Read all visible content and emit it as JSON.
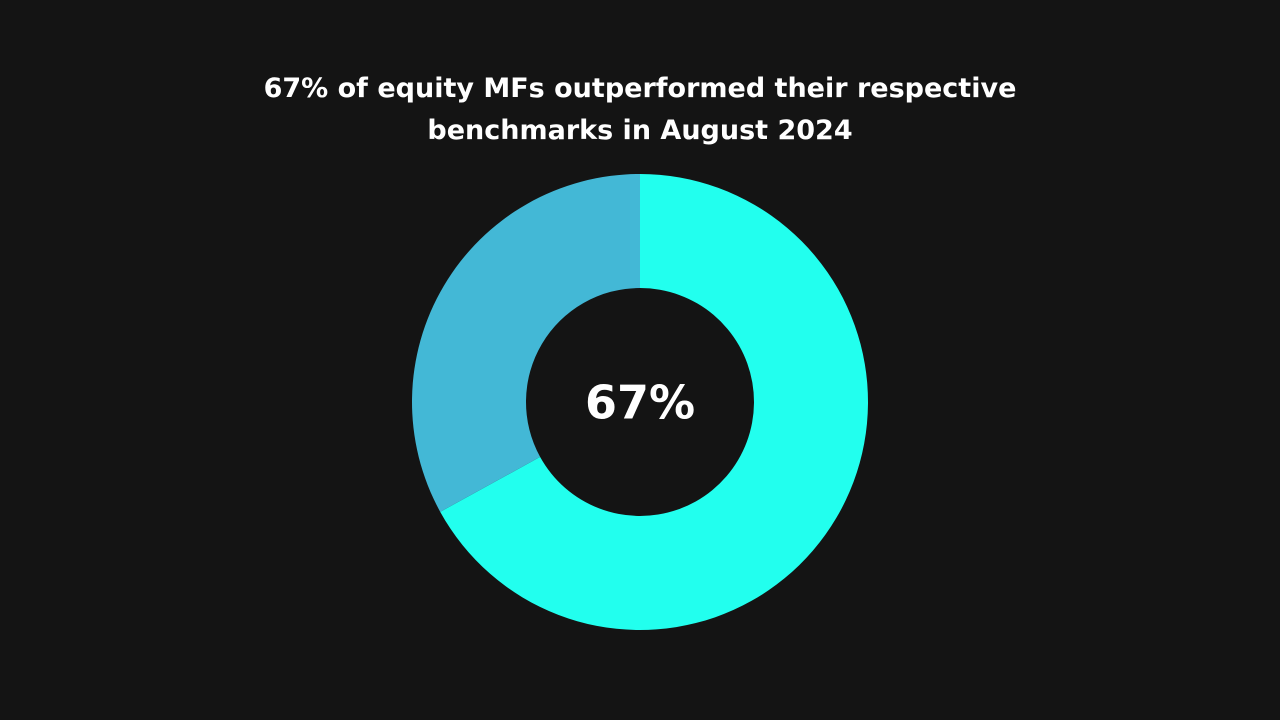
{
  "chart_data": {
    "type": "pie",
    "title_lines": [
      "67% of equity MFs outperformed their respective",
      "benchmarks in August 2024"
    ],
    "center_label": "67%",
    "slices": [
      {
        "value": 67,
        "color": "#22FFEE"
      },
      {
        "value": 33,
        "color": "#43B8D6"
      }
    ]
  }
}
